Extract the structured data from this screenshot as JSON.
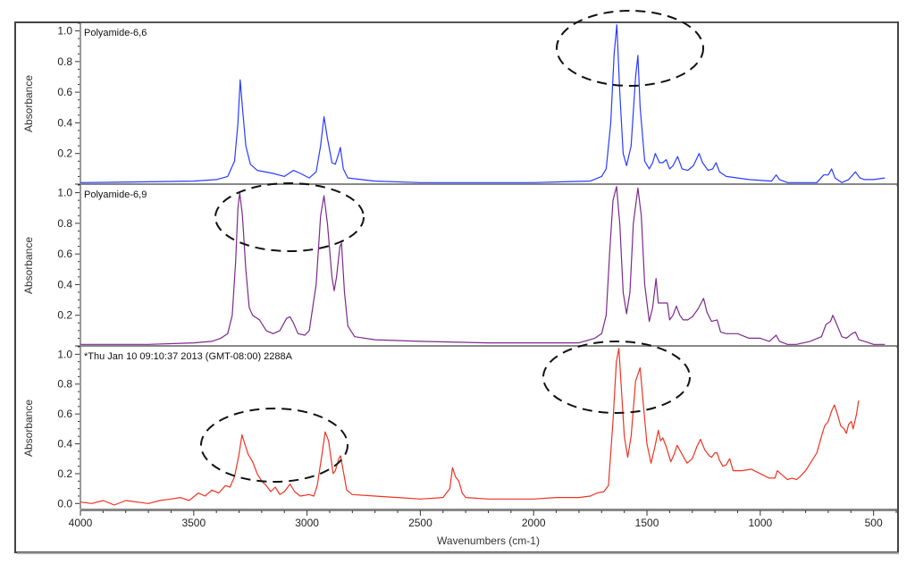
{
  "chart_data": [
    {
      "type": "line",
      "panel_label": "Polyamide-6,6",
      "ylabel": "Absorbance",
      "xlabel": "",
      "xlim": [
        4000,
        400
      ],
      "ylim": [
        0,
        1.05
      ],
      "yticks": [
        "0.2",
        "0.4",
        "0.6",
        "0.8",
        "1.0"
      ],
      "color": "#2a3cff",
      "grid": false,
      "annotations": [
        "dashed ellipse around 1640 and 1540 peaks"
      ],
      "points": [
        [
          4000,
          0.01
        ],
        [
          3700,
          0.015
        ],
        [
          3500,
          0.02
        ],
        [
          3400,
          0.03
        ],
        [
          3350,
          0.05
        ],
        [
          3320,
          0.15
        ],
        [
          3305,
          0.4
        ],
        [
          3295,
          0.68
        ],
        [
          3285,
          0.5
        ],
        [
          3270,
          0.25
        ],
        [
          3250,
          0.13
        ],
        [
          3220,
          0.09
        ],
        [
          3150,
          0.07
        ],
        [
          3100,
          0.05
        ],
        [
          3060,
          0.09
        ],
        [
          3030,
          0.07
        ],
        [
          2990,
          0.04
        ],
        [
          2960,
          0.08
        ],
        [
          2940,
          0.25
        ],
        [
          2925,
          0.44
        ],
        [
          2910,
          0.3
        ],
        [
          2890,
          0.14
        ],
        [
          2875,
          0.13
        ],
        [
          2860,
          0.2
        ],
        [
          2853,
          0.24
        ],
        [
          2840,
          0.1
        ],
        [
          2820,
          0.04
        ],
        [
          2700,
          0.02
        ],
        [
          2500,
          0.01
        ],
        [
          2000,
          0.01
        ],
        [
          1750,
          0.02
        ],
        [
          1700,
          0.05
        ],
        [
          1680,
          0.1
        ],
        [
          1660,
          0.4
        ],
        [
          1645,
          0.85
        ],
        [
          1633,
          1.04
        ],
        [
          1620,
          0.6
        ],
        [
          1605,
          0.2
        ],
        [
          1590,
          0.12
        ],
        [
          1570,
          0.25
        ],
        [
          1550,
          0.7
        ],
        [
          1540,
          0.84
        ],
        [
          1530,
          0.5
        ],
        [
          1510,
          0.15
        ],
        [
          1490,
          0.1
        ],
        [
          1475,
          0.14
        ],
        [
          1463,
          0.2
        ],
        [
          1445,
          0.14
        ],
        [
          1430,
          0.14
        ],
        [
          1415,
          0.16
        ],
        [
          1400,
          0.1
        ],
        [
          1385,
          0.12
        ],
        [
          1365,
          0.18
        ],
        [
          1345,
          0.1
        ],
        [
          1320,
          0.09
        ],
        [
          1295,
          0.12
        ],
        [
          1270,
          0.2
        ],
        [
          1255,
          0.14
        ],
        [
          1230,
          0.09
        ],
        [
          1210,
          0.1
        ],
        [
          1195,
          0.14
        ],
        [
          1180,
          0.08
        ],
        [
          1150,
          0.05
        ],
        [
          1050,
          0.03
        ],
        [
          950,
          0.02
        ],
        [
          930,
          0.06
        ],
        [
          915,
          0.03
        ],
        [
          880,
          0.01
        ],
        [
          750,
          0.01
        ],
        [
          720,
          0.06
        ],
        [
          700,
          0.06
        ],
        [
          685,
          0.1
        ],
        [
          670,
          0.04
        ],
        [
          640,
          0.01
        ],
        [
          610,
          0.03
        ],
        [
          580,
          0.08
        ],
        [
          560,
          0.04
        ],
        [
          540,
          0.03
        ],
        [
          500,
          0.03
        ],
        [
          450,
          0.04
        ]
      ]
    },
    {
      "type": "line",
      "panel_label": "Polyamide-6,9",
      "ylabel": "Absorbance",
      "xlabel": "",
      "xlim": [
        4000,
        400
      ],
      "ylim": [
        0,
        1.05
      ],
      "yticks": [
        "0.2",
        "0.4",
        "0.6",
        "0.8",
        "1.0"
      ],
      "color": "#7b2a8c",
      "grid": false,
      "annotations": [
        "dashed ellipse around 3300 and 2920 peaks"
      ],
      "points": [
        [
          4000,
          0.01
        ],
        [
          3700,
          0.01
        ],
        [
          3500,
          0.02
        ],
        [
          3420,
          0.03
        ],
        [
          3380,
          0.05
        ],
        [
          3350,
          0.08
        ],
        [
          3330,
          0.2
        ],
        [
          3315,
          0.55
        ],
        [
          3305,
          0.9
        ],
        [
          3297,
          1.0
        ],
        [
          3285,
          0.85
        ],
        [
          3270,
          0.5
        ],
        [
          3255,
          0.25
        ],
        [
          3240,
          0.2
        ],
        [
          3210,
          0.17
        ],
        [
          3180,
          0.1
        ],
        [
          3150,
          0.08
        ],
        [
          3120,
          0.1
        ],
        [
          3090,
          0.18
        ],
        [
          3075,
          0.19
        ],
        [
          3060,
          0.15
        ],
        [
          3040,
          0.08
        ],
        [
          3010,
          0.07
        ],
        [
          2990,
          0.1
        ],
        [
          2960,
          0.4
        ],
        [
          2940,
          0.85
        ],
        [
          2925,
          0.98
        ],
        [
          2910,
          0.8
        ],
        [
          2890,
          0.45
        ],
        [
          2880,
          0.36
        ],
        [
          2870,
          0.45
        ],
        [
          2855,
          0.65
        ],
        [
          2848,
          0.67
        ],
        [
          2835,
          0.35
        ],
        [
          2820,
          0.13
        ],
        [
          2790,
          0.06
        ],
        [
          2700,
          0.04
        ],
        [
          2500,
          0.03
        ],
        [
          2200,
          0.02
        ],
        [
          1800,
          0.02
        ],
        [
          1730,
          0.05
        ],
        [
          1700,
          0.08
        ],
        [
          1680,
          0.2
        ],
        [
          1665,
          0.6
        ],
        [
          1650,
          0.95
        ],
        [
          1634,
          1.04
        ],
        [
          1620,
          0.8
        ],
        [
          1605,
          0.35
        ],
        [
          1590,
          0.21
        ],
        [
          1575,
          0.35
        ],
        [
          1560,
          0.8
        ],
        [
          1540,
          1.03
        ],
        [
          1525,
          0.85
        ],
        [
          1510,
          0.4
        ],
        [
          1490,
          0.16
        ],
        [
          1475,
          0.25
        ],
        [
          1460,
          0.44
        ],
        [
          1450,
          0.28
        ],
        [
          1430,
          0.28
        ],
        [
          1410,
          0.28
        ],
        [
          1400,
          0.17
        ],
        [
          1385,
          0.2
        ],
        [
          1370,
          0.26
        ],
        [
          1355,
          0.2
        ],
        [
          1340,
          0.17
        ],
        [
          1320,
          0.17
        ],
        [
          1300,
          0.19
        ],
        [
          1275,
          0.24
        ],
        [
          1250,
          0.31
        ],
        [
          1235,
          0.22
        ],
        [
          1215,
          0.16
        ],
        [
          1190,
          0.17
        ],
        [
          1175,
          0.09
        ],
        [
          1150,
          0.08
        ],
        [
          1100,
          0.08
        ],
        [
          1050,
          0.05
        ],
        [
          1000,
          0.05
        ],
        [
          960,
          0.03
        ],
        [
          930,
          0.07
        ],
        [
          915,
          0.03
        ],
        [
          880,
          0.01
        ],
        [
          840,
          0.01
        ],
        [
          780,
          0.03
        ],
        [
          730,
          0.06
        ],
        [
          710,
          0.14
        ],
        [
          690,
          0.16
        ],
        [
          680,
          0.2
        ],
        [
          665,
          0.15
        ],
        [
          640,
          0.06
        ],
        [
          620,
          0.05
        ],
        [
          595,
          0.08
        ],
        [
          580,
          0.09
        ],
        [
          565,
          0.04
        ],
        [
          540,
          0.03
        ],
        [
          500,
          0.01
        ],
        [
          450,
          0.01
        ]
      ]
    },
    {
      "type": "line",
      "panel_label": "*Thu Jan 10 09:10:37 2013 (GMT-08:00) 2288A",
      "ylabel": "Absorbance",
      "xlabel": "Wavenumbers (cm-1)",
      "xlim": [
        4000,
        400
      ],
      "ylim": [
        -0.04,
        1.05
      ],
      "yticks": [
        "0.0",
        "0.2",
        "0.4",
        "0.6",
        "0.8",
        "1.0"
      ],
      "xticks": [
        "4000",
        "3500",
        "3000",
        "2500",
        "2000",
        "1500",
        "1000",
        "500"
      ],
      "color": "#ee3322",
      "grid": false,
      "annotations": [
        "dashed ellipse around 3300 and 2920 peaks",
        "dashed ellipse around 1640 and 1540 peaks"
      ],
      "points": [
        [
          4000,
          0.01
        ],
        [
          3950,
          0.0
        ],
        [
          3900,
          0.02
        ],
        [
          3850,
          -0.01
        ],
        [
          3800,
          0.02
        ],
        [
          3750,
          0.01
        ],
        [
          3700,
          0.0
        ],
        [
          3650,
          0.02
        ],
        [
          3600,
          0.03
        ],
        [
          3560,
          0.04
        ],
        [
          3520,
          0.02
        ],
        [
          3480,
          0.07
        ],
        [
          3450,
          0.05
        ],
        [
          3420,
          0.09
        ],
        [
          3390,
          0.07
        ],
        [
          3360,
          0.12
        ],
        [
          3340,
          0.11
        ],
        [
          3320,
          0.18
        ],
        [
          3300,
          0.33
        ],
        [
          3287,
          0.46
        ],
        [
          3275,
          0.4
        ],
        [
          3260,
          0.33
        ],
        [
          3240,
          0.28
        ],
        [
          3220,
          0.2
        ],
        [
          3200,
          0.15
        ],
        [
          3180,
          0.12
        ],
        [
          3160,
          0.08
        ],
        [
          3140,
          0.11
        ],
        [
          3120,
          0.06
        ],
        [
          3100,
          0.08
        ],
        [
          3075,
          0.13
        ],
        [
          3055,
          0.08
        ],
        [
          3030,
          0.05
        ],
        [
          2990,
          0.06
        ],
        [
          2970,
          0.05
        ],
        [
          2955,
          0.12
        ],
        [
          2935,
          0.32
        ],
        [
          2920,
          0.48
        ],
        [
          2905,
          0.42
        ],
        [
          2885,
          0.2
        ],
        [
          2875,
          0.22
        ],
        [
          2860,
          0.3
        ],
        [
          2852,
          0.32
        ],
        [
          2838,
          0.2
        ],
        [
          2825,
          0.09
        ],
        [
          2800,
          0.06
        ],
        [
          2700,
          0.05
        ],
        [
          2600,
          0.04
        ],
        [
          2500,
          0.03
        ],
        [
          2400,
          0.04
        ],
        [
          2370,
          0.1
        ],
        [
          2358,
          0.24
        ],
        [
          2345,
          0.18
        ],
        [
          2330,
          0.15
        ],
        [
          2315,
          0.07
        ],
        [
          2300,
          0.04
        ],
        [
          2200,
          0.03
        ],
        [
          2000,
          0.03
        ],
        [
          1900,
          0.04
        ],
        [
          1800,
          0.04
        ],
        [
          1750,
          0.05
        ],
        [
          1720,
          0.07
        ],
        [
          1690,
          0.08
        ],
        [
          1670,
          0.12
        ],
        [
          1650,
          0.55
        ],
        [
          1635,
          0.95
        ],
        [
          1624,
          1.04
        ],
        [
          1612,
          0.75
        ],
        [
          1600,
          0.45
        ],
        [
          1585,
          0.31
        ],
        [
          1570,
          0.45
        ],
        [
          1550,
          0.82
        ],
        [
          1530,
          0.91
        ],
        [
          1515,
          0.65
        ],
        [
          1500,
          0.4
        ],
        [
          1482,
          0.27
        ],
        [
          1465,
          0.38
        ],
        [
          1450,
          0.49
        ],
        [
          1440,
          0.42
        ],
        [
          1430,
          0.44
        ],
        [
          1415,
          0.38
        ],
        [
          1395,
          0.28
        ],
        [
          1380,
          0.33
        ],
        [
          1367,
          0.39
        ],
        [
          1345,
          0.33
        ],
        [
          1323,
          0.27
        ],
        [
          1300,
          0.3
        ],
        [
          1280,
          0.38
        ],
        [
          1264,
          0.43
        ],
        [
          1245,
          0.36
        ],
        [
          1225,
          0.32
        ],
        [
          1215,
          0.31
        ],
        [
          1200,
          0.34
        ],
        [
          1190,
          0.34
        ],
        [
          1180,
          0.29
        ],
        [
          1165,
          0.25
        ],
        [
          1150,
          0.26
        ],
        [
          1135,
          0.3
        ],
        [
          1120,
          0.22
        ],
        [
          1080,
          0.22
        ],
        [
          1040,
          0.23
        ],
        [
          1000,
          0.2
        ],
        [
          961,
          0.17
        ],
        [
          935,
          0.17
        ],
        [
          925,
          0.22
        ],
        [
          910,
          0.2
        ],
        [
          895,
          0.18
        ],
        [
          880,
          0.16
        ],
        [
          860,
          0.17
        ],
        [
          840,
          0.16
        ],
        [
          825,
          0.18
        ],
        [
          800,
          0.22
        ],
        [
          775,
          0.28
        ],
        [
          750,
          0.34
        ],
        [
          730,
          0.45
        ],
        [
          716,
          0.52
        ],
        [
          700,
          0.55
        ],
        [
          685,
          0.62
        ],
        [
          673,
          0.66
        ],
        [
          660,
          0.6
        ],
        [
          645,
          0.52
        ],
        [
          630,
          0.5
        ],
        [
          620,
          0.47
        ],
        [
          610,
          0.53
        ],
        [
          598,
          0.55
        ],
        [
          590,
          0.5
        ],
        [
          575,
          0.6
        ],
        [
          566,
          0.69
        ]
      ]
    }
  ]
}
